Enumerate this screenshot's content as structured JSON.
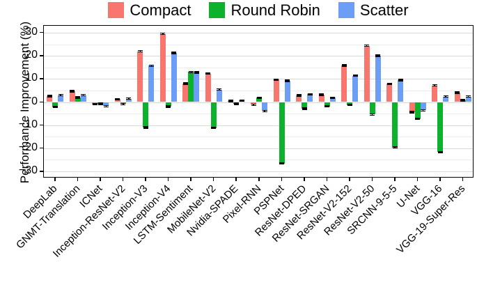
{
  "figure": {
    "y_axis": {
      "title": "Performance Improvement (%)",
      "tick_values": [
        30,
        20,
        10,
        0,
        -10,
        -20,
        -30
      ],
      "minor_tick_values": [
        25,
        15,
        5,
        -5,
        -15,
        -25
      ]
    },
    "x_axis": {
      "title": ""
    }
  },
  "chart_data": {
    "type": "bar",
    "title": "",
    "xlabel": "",
    "ylabel": "Performance Improvement (%)",
    "ylim": [
      -33,
      33
    ],
    "grid": "horizontal major+minor, light gray on white, black panel border",
    "legend_position": "top",
    "error_bars": true,
    "error_value": 0.5,
    "categories": [
      "DeepLab",
      "GNMT-Translation",
      "ICNet",
      "Inception-ResNet-V2",
      "Inception-V3",
      "Inception-V4",
      "LSTM-Sentiment",
      "MobileNet-V2",
      "Nvidia-SPADE",
      "Pixel-RNN",
      "PSPNet",
      "ResNet-DPED",
      "ResNet-SRGAN",
      "ResNet-V2-152",
      "ResNet-V2-50",
      "SRCNN-9-5-5",
      "U-Net",
      "VGG-16",
      "VGG-19-Super-Res"
    ],
    "series": [
      {
        "name": "Compact",
        "color": "#F8766D",
        "values": [
          2.6,
          4.7,
          -1.0,
          1.3,
          22.0,
          29.5,
          8.0,
          12.3,
          0.5,
          -1.2,
          9.7,
          2.9,
          3.2,
          15.8,
          24.4,
          7.9,
          -4.4,
          7.2,
          4.1
        ]
      },
      {
        "name": "Round Robin",
        "color": "#0CB22C",
        "values": [
          -2.2,
          2.0,
          -0.8,
          -0.9,
          -11.0,
          -2.0,
          13.0,
          -11.2,
          -0.8,
          1.9,
          -26.6,
          -2.9,
          -1.9,
          -1.3,
          -5.4,
          -19.6,
          -7.3,
          -21.6,
          0.8
        ]
      },
      {
        "name": "Scatter",
        "color": "#6C9EF8",
        "values": [
          3.0,
          3.0,
          -1.8,
          1.5,
          15.7,
          21.2,
          12.8,
          5.4,
          0.7,
          -3.9,
          9.2,
          3.4,
          1.9,
          11.4,
          20.0,
          9.5,
          -3.6,
          2.4,
          2.4
        ]
      }
    ]
  }
}
